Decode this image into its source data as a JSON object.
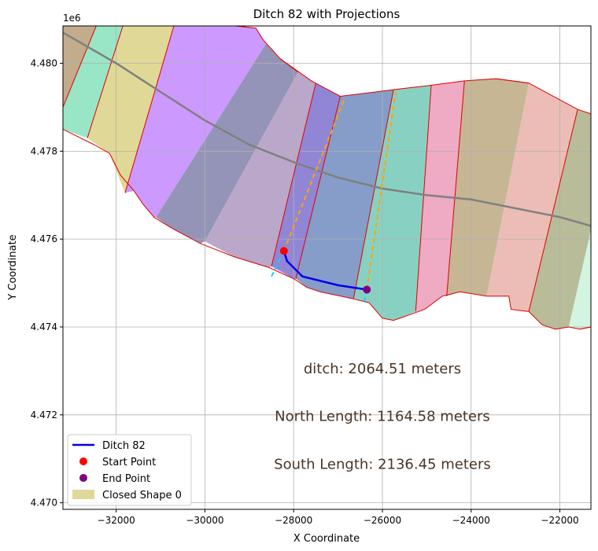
{
  "chart_data": {
    "type": "map-plot",
    "title": "Ditch 82 with Projections",
    "xlabel": "X Coordinate",
    "ylabel": "Y Coordinate",
    "y_offset_label": "1e6",
    "xlim": [
      -33200,
      -21300
    ],
    "ylim": [
      4469850,
      4480850
    ],
    "x_ticks": [
      -32000,
      -30000,
      -28000,
      -26000,
      -24000,
      -22000
    ],
    "x_tick_labels": [
      "−32000",
      "−30000",
      "−28000",
      "−26000",
      "−24000",
      "−22000"
    ],
    "y_ticks": [
      4470000,
      4472000,
      4474000,
      4476000,
      4478000,
      4480000
    ],
    "y_tick_labels": [
      "4.470",
      "4.472",
      "4.474",
      "4.476",
      "4.478",
      "4.480"
    ],
    "grid": true,
    "legend_position": "lower-left",
    "boundary": [
      [
        -33200,
        4480850
      ],
      [
        -31850,
        4480850
      ],
      [
        -29300,
        4480850
      ],
      [
        -28850,
        4480800
      ],
      [
        -28700,
        4480550
      ],
      [
        -28300,
        4480100
      ],
      [
        -27600,
        4479600
      ],
      [
        -26950,
        4479250
      ],
      [
        -25750,
        4479400
      ],
      [
        -24900,
        4479500
      ],
      [
        -24150,
        4479600
      ],
      [
        -23450,
        4479650
      ],
      [
        -22700,
        4479550
      ],
      [
        -21600,
        4478950
      ],
      [
        -21300,
        4478850
      ],
      [
        -21300,
        4474000
      ],
      [
        -21550,
        4473950
      ],
      [
        -21800,
        4474000
      ],
      [
        -22100,
        4473950
      ],
      [
        -22400,
        4474050
      ],
      [
        -22700,
        4474350
      ],
      [
        -23100,
        4474400
      ],
      [
        -23150,
        4474700
      ],
      [
        -23650,
        4474700
      ],
      [
        -24250,
        4474800
      ],
      [
        -24650,
        4474700
      ],
      [
        -25050,
        4474400
      ],
      [
        -25750,
        4474150
      ],
      [
        -26000,
        4474200
      ],
      [
        -26300,
        4474550
      ],
      [
        -26700,
        4474650
      ],
      [
        -27400,
        4474800
      ],
      [
        -27700,
        4474900
      ],
      [
        -28000,
        4475100
      ],
      [
        -28550,
        4475350
      ],
      [
        -29350,
        4475600
      ],
      [
        -30100,
        4475900
      ],
      [
        -30750,
        4476250
      ],
      [
        -31150,
        4476500
      ],
      [
        -31400,
        4476800
      ],
      [
        -31600,
        4477100
      ],
      [
        -31900,
        4477450
      ],
      [
        -32150,
        4477950
      ],
      [
        -32500,
        4478150
      ],
      [
        -33200,
        4478500
      ]
    ],
    "polygon_fills": [
      {
        "color": "#c2ac8c",
        "poly": [
          [
            -33200,
            4480850
          ],
          [
            -32450,
            4480850
          ],
          [
            -33200,
            4479000
          ]
        ]
      },
      {
        "color": "#99e6c7",
        "poly": [
          [
            -32450,
            4480850
          ],
          [
            -31850,
            4480850
          ],
          [
            -32650,
            4478300
          ],
          [
            -33200,
            4478500
          ],
          [
            -33200,
            4479000
          ]
        ]
      },
      {
        "color": "#e0d896",
        "poly": [
          [
            -31850,
            4480850
          ],
          [
            -30700,
            4480850
          ],
          [
            -31800,
            4477050
          ],
          [
            -32150,
            4477950
          ],
          [
            -32650,
            4478300
          ]
        ]
      },
      {
        "color": "#cc99ff",
        "poly": [
          [
            -30700,
            4480850
          ],
          [
            -29300,
            4480850
          ],
          [
            -28850,
            4480800
          ],
          [
            -28620,
            4480450
          ],
          [
            -31100,
            4476500
          ],
          [
            -31150,
            4476500
          ],
          [
            -31400,
            4476800
          ],
          [
            -31600,
            4477100
          ],
          [
            -31800,
            4477050
          ]
        ]
      },
      {
        "color": "#9494b8",
        "poly": [
          [
            -28620,
            4480450
          ],
          [
            -28300,
            4480100
          ],
          [
            -27900,
            4479800
          ],
          [
            -30000,
            4475950
          ],
          [
            -30100,
            4475900
          ],
          [
            -30750,
            4476250
          ],
          [
            -31100,
            4476500
          ]
        ]
      },
      {
        "color": "#bba7c9",
        "poly": [
          [
            -27900,
            4479800
          ],
          [
            -27500,
            4479550
          ],
          [
            -28500,
            4475380
          ],
          [
            -28550,
            4475350
          ],
          [
            -29350,
            4475600
          ],
          [
            -30000,
            4475950
          ]
        ]
      },
      {
        "color": "#9186d6",
        "poly": [
          [
            -27500,
            4479550
          ],
          [
            -26950,
            4479250
          ],
          [
            -27950,
            4475100
          ],
          [
            -28000,
            4475100
          ],
          [
            -28500,
            4475380
          ]
        ]
      },
      {
        "color": "#859dc8",
        "poly": [
          [
            -26950,
            4479250
          ],
          [
            -25750,
            4479400
          ],
          [
            -26650,
            4474650
          ],
          [
            -26700,
            4474650
          ],
          [
            -27400,
            4474800
          ],
          [
            -27700,
            4474900
          ],
          [
            -27950,
            4475100
          ]
        ]
      },
      {
        "color": "#88d1c2",
        "poly": [
          [
            -25750,
            4479400
          ],
          [
            -24900,
            4479500
          ],
          [
            -25250,
            4474350
          ],
          [
            -25750,
            4474150
          ],
          [
            -26000,
            4474200
          ],
          [
            -26300,
            4474550
          ],
          [
            -26650,
            4474650
          ]
        ]
      },
      {
        "color": "#efaac4",
        "poly": [
          [
            -24900,
            4479500
          ],
          [
            -24150,
            4479600
          ],
          [
            -24550,
            4474700
          ],
          [
            -24650,
            4474700
          ],
          [
            -25050,
            4474400
          ],
          [
            -25250,
            4474350
          ]
        ]
      },
      {
        "color": "#c6b694",
        "poly": [
          [
            -24150,
            4479600
          ],
          [
            -23450,
            4479650
          ],
          [
            -22700,
            4479550
          ],
          [
            -23650,
            4474700
          ],
          [
            -24250,
            4474800
          ],
          [
            -24550,
            4474700
          ]
        ]
      },
      {
        "color": "#ecbdb6",
        "poly": [
          [
            -22700,
            4479550
          ],
          [
            -21600,
            4478950
          ],
          [
            -22700,
            4474350
          ],
          [
            -23100,
            4474400
          ],
          [
            -23150,
            4474700
          ],
          [
            -23650,
            4474700
          ]
        ]
      },
      {
        "color": "#b8bc99",
        "poly": [
          [
            -21600,
            4478950
          ],
          [
            -21300,
            4478850
          ],
          [
            -21300,
            4476200
          ],
          [
            -21800,
            4474000
          ],
          [
            -22100,
            4473950
          ],
          [
            -22400,
            4474050
          ],
          [
            -22700,
            4474350
          ]
        ]
      },
      {
        "color": "#d2f4e0",
        "poly": [
          [
            -21300,
            4476200
          ],
          [
            -21300,
            4474000
          ],
          [
            -21550,
            4473950
          ],
          [
            -21800,
            4474000
          ]
        ]
      }
    ],
    "centerline": {
      "color": "#808080",
      "x": [
        -33200,
        -32000,
        -31000,
        -30000,
        -29000,
        -28000,
        -27000,
        -26000,
        -25000,
        -24000,
        -23000,
        -22000,
        -21300
      ],
      "y": [
        4480700,
        4480000,
        4479350,
        4478700,
        4478150,
        4477750,
        4477400,
        4477150,
        4477000,
        4476900,
        4476700,
        4476500,
        4476300
      ]
    },
    "ditch": {
      "name": "Ditch 82",
      "color": "#0000ee",
      "x": [
        -28220,
        -28150,
        -27800,
        -27000,
        -26350
      ],
      "y": [
        4475730,
        4475500,
        4475150,
        4474950,
        4474850
      ]
    },
    "start_point": {
      "name": "Start Point",
      "x": -28220,
      "y": 4475730,
      "color": "#ff0000"
    },
    "end_point": {
      "name": "End Point",
      "x": -26350,
      "y": 4474850,
      "color": "#800080"
    },
    "projections": [
      {
        "color": "#ffa500",
        "x": [
          -28220,
          -26850
        ],
        "y": [
          4475730,
          4479200
        ]
      },
      {
        "color": "#ffa500",
        "x": [
          -26350,
          -25700
        ],
        "y": [
          4474850,
          4479350
        ]
      },
      {
        "color": "#00d8ff",
        "x": [
          -28220,
          -28500
        ],
        "y": [
          4475730,
          4475150
        ]
      },
      {
        "color": "#00d8ff",
        "x": [
          -26350,
          -26400
        ],
        "y": [
          4474850,
          4474600
        ]
      }
    ],
    "annotations": [
      {
        "text": "ditch: 2064.51 meters",
        "x": -26000,
        "y": 4473050
      },
      {
        "text": "North Length: 1164.58 meters",
        "x": -26000,
        "y": 4471970
      },
      {
        "text": "South Length: 2136.45 meters",
        "x": -26000,
        "y": 4470880
      }
    ],
    "legend": [
      {
        "label": "Ditch 82",
        "kind": "line",
        "color": "#0000ee"
      },
      {
        "label": "Start Point",
        "kind": "dot",
        "color": "#ff0000"
      },
      {
        "label": "End Point",
        "kind": "dot",
        "color": "#800080"
      },
      {
        "label": "Closed Shape 0",
        "kind": "patch",
        "color": "#e0d896"
      }
    ]
  }
}
